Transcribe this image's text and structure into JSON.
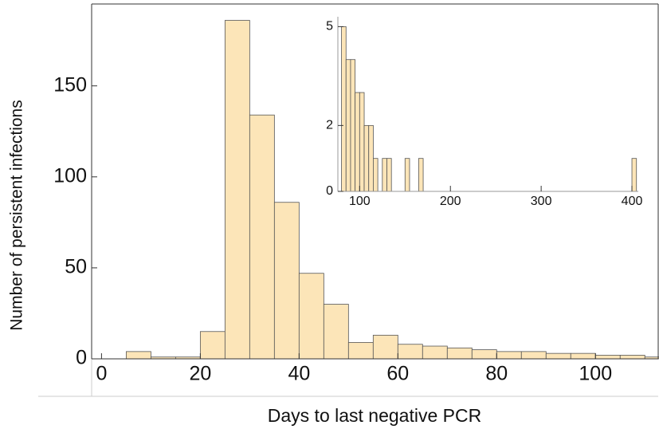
{
  "chart_data": [
    {
      "type": "histogram",
      "x_label": "Days to last negative PCR",
      "y_label": "Number of persistent infections",
      "bins": [
        5,
        10,
        15,
        20,
        25,
        30,
        35,
        40,
        45,
        50,
        55,
        60,
        65,
        70,
        75,
        80,
        85,
        90,
        95,
        100,
        105,
        110,
        115
      ],
      "values": [
        4,
        1,
        1,
        15,
        186,
        134,
        86,
        47,
        30,
        9,
        13,
        8,
        7,
        6,
        5,
        4,
        4,
        3,
        3,
        2,
        2,
        1
      ],
      "color": "#fce5b8",
      "xlim": [
        -2,
        112.7
      ],
      "ylim": [
        0,
        195
      ],
      "xticks": [
        0,
        20,
        40,
        60,
        80,
        100
      ],
      "yticks": [
        0,
        50,
        100,
        150
      ]
    },
    {
      "type": "histogram",
      "bins": [
        80,
        85,
        90,
        95,
        100,
        105,
        110,
        115,
        120,
        125,
        130,
        135,
        140,
        145,
        150,
        155,
        160,
        165,
        170,
        175,
        180,
        185,
        190,
        195,
        200,
        205,
        210,
        215,
        220,
        225,
        230,
        235,
        240,
        245,
        250,
        255,
        260,
        265,
        270,
        275,
        280,
        285,
        290,
        295,
        300,
        305,
        310,
        315,
        320,
        325,
        330,
        335,
        340,
        345,
        350,
        355,
        360,
        365,
        370,
        375,
        380,
        385,
        390,
        395,
        400,
        405
      ],
      "values": [
        5,
        4,
        4,
        3,
        3,
        2,
        2,
        1,
        0,
        1,
        1,
        0,
        0,
        0,
        1,
        0,
        0,
        1,
        0,
        0,
        0,
        0,
        0,
        0,
        0,
        0,
        0,
        0,
        0,
        0,
        0,
        0,
        0,
        0,
        0,
        0,
        0,
        0,
        0,
        0,
        0,
        0,
        0,
        0,
        0,
        0,
        0,
        0,
        0,
        0,
        0,
        0,
        0,
        0,
        0,
        0,
        0,
        0,
        0,
        0,
        0,
        0,
        0,
        0,
        1
      ],
      "color": "#fce5b8",
      "xlim": [
        76,
        407
      ],
      "ylim": [
        0,
        5.3
      ],
      "xticks": [
        100,
        200,
        300,
        400
      ],
      "yticks": [
        0,
        2,
        5
      ]
    }
  ]
}
